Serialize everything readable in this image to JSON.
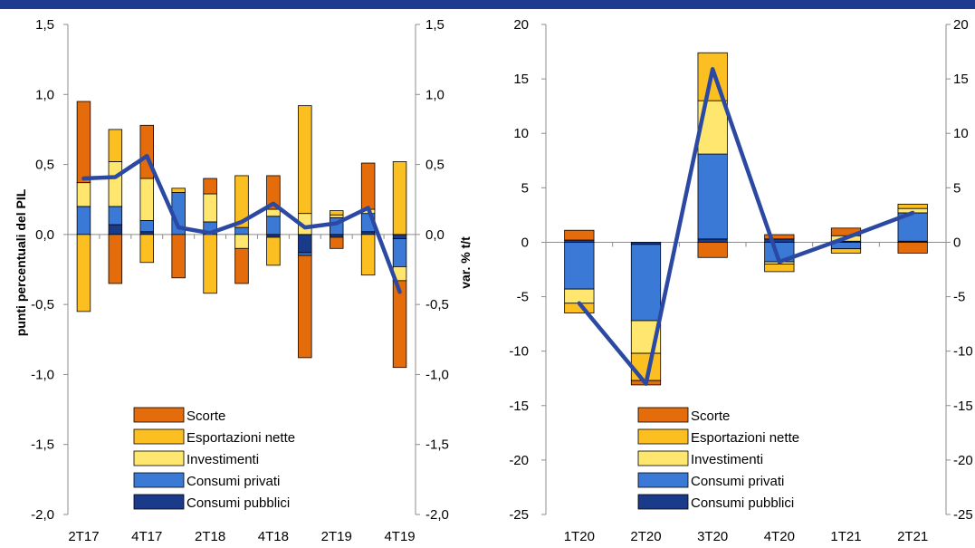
{
  "colors": {
    "scorte": "#e46c0a",
    "esportazioni": "#fbbf21",
    "investimenti": "#ffe66f",
    "consumi_privati": "#3a7ad6",
    "consumi_pubblici": "#1a3a8a",
    "pil_line": "#2b49a3",
    "topbar": "#1f3b8f"
  },
  "chart_data": [
    {
      "type": "bar",
      "stacked": true,
      "ylabel_left": "punti percentuali del PIL",
      "ylabel_right": "var. % t/t",
      "ylim": [
        -2.0,
        1.5
      ],
      "yticks": [
        "1,5",
        "1,0",
        "0,5",
        "0,0",
        "-0,5",
        "-1,0",
        "-1,5",
        "-2,0"
      ],
      "ytick_values": [
        1.5,
        1.0,
        0.5,
        0.0,
        -0.5,
        -1.0,
        -1.5,
        -2.0
      ],
      "x_tick_labels": [
        "2T17",
        "",
        "4T17",
        "",
        "2T18",
        "",
        "4T18",
        "",
        "2T19",
        "",
        "4T19"
      ],
      "legend": [
        "Scorte",
        "Esportazioni nette",
        "Investimenti",
        "Consumi privati",
        "Consumi pubblici"
      ],
      "legend_position": "bottom-right",
      "series": [
        {
          "key": "consumi_pubblici",
          "values": [
            0.0,
            0.07,
            0.02,
            0.0,
            0.0,
            0.0,
            -0.02,
            -0.13,
            -0.02,
            0.02,
            -0.03
          ]
        },
        {
          "key": "consumi_privati",
          "values": [
            0.2,
            0.13,
            0.08,
            0.3,
            0.09,
            0.05,
            0.13,
            -0.02,
            0.12,
            0.13,
            -0.2
          ]
        },
        {
          "key": "investimenti",
          "values": [
            0.17,
            0.32,
            0.3,
            0.0,
            0.2,
            -0.1,
            0.05,
            0.15,
            0.02,
            0.03,
            -0.1
          ]
        },
        {
          "key": "esportazioni",
          "values": [
            -0.55,
            0.23,
            -0.2,
            0.03,
            -0.42,
            0.37,
            -0.2,
            0.77,
            0.03,
            -0.29,
            0.52
          ]
        },
        {
          "key": "scorte",
          "values": [
            0.58,
            -0.35,
            0.38,
            -0.31,
            0.11,
            -0.25,
            0.24,
            -0.73,
            -0.08,
            0.33,
            -0.62
          ]
        }
      ],
      "line": {
        "name": "PIL",
        "values": [
          0.4,
          0.41,
          0.56,
          0.05,
          0.01,
          0.09,
          0.22,
          0.05,
          0.08,
          0.19,
          -0.41
        ]
      }
    },
    {
      "type": "bar",
      "stacked": true,
      "ylim": [
        -25,
        20
      ],
      "yticks": [
        "20",
        "15",
        "10",
        "5",
        "0",
        "-5",
        "-10",
        "-15",
        "-20",
        "-25"
      ],
      "ytick_values": [
        20,
        15,
        10,
        5,
        0,
        -5,
        -10,
        -15,
        -20,
        -25
      ],
      "x_tick_labels": [
        "1T20",
        "2T20",
        "3T20",
        "4T20",
        "1T21",
        "2T21"
      ],
      "legend": [
        "Scorte",
        "Esportazioni nette",
        "Investimenti",
        "Consumi privati",
        "Consumi pubblici"
      ],
      "legend_position": "bottom-center",
      "series": [
        {
          "key": "consumi_pubblici",
          "values": [
            0.2,
            -0.2,
            0.3,
            0.3,
            0.1,
            0.1
          ]
        },
        {
          "key": "consumi_privati",
          "values": [
            -4.3,
            -7.0,
            7.8,
            -1.8,
            -0.6,
            2.6
          ]
        },
        {
          "key": "investimenti",
          "values": [
            -1.3,
            -3.0,
            4.9,
            -0.2,
            0.5,
            0.4
          ]
        },
        {
          "key": "esportazioni",
          "values": [
            -0.9,
            -2.5,
            4.4,
            -0.7,
            -0.4,
            0.4
          ]
        },
        {
          "key": "scorte",
          "values": [
            0.9,
            -0.4,
            -1.4,
            0.4,
            0.7,
            -1.0
          ]
        }
      ],
      "line": {
        "name": "PIL",
        "values": [
          -5.6,
          -13.0,
          15.9,
          -1.8,
          0.4,
          2.7
        ]
      }
    }
  ]
}
